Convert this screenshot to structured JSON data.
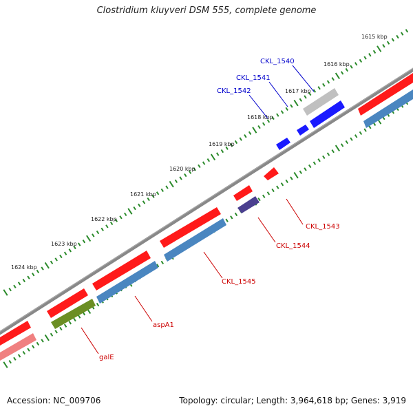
{
  "title": "Clostridium kluyveri DSM 555, complete genome",
  "accession_text": "Accession: NC_009706",
  "topology_text": "Topology: circular; Length: 3,964,618 bp; Genes: 3,919",
  "colors": {
    "backbone": "#777777",
    "tick": "#2a8a2a",
    "forward_cds": "#ff1a1a",
    "reverse_cds": "#4a86c0",
    "forward_hit": "#1a1aff",
    "reverse_hit": "#4a3f8f",
    "olive": "#6b8e23",
    "pink": "#f08080",
    "gray": "#c0c0c0",
    "label_forward": "#0000cc",
    "label_reverse": "#cc0000"
  },
  "scale": {
    "unit": "kbp",
    "ticks": [
      {
        "label": "1615 kbp"
      },
      {
        "label": "1616 kbp"
      },
      {
        "label": "1617 kbp"
      },
      {
        "label": "1618 kbp"
      },
      {
        "label": "1619 kbp"
      },
      {
        "label": "1620 kbp"
      },
      {
        "label": "1621 kbp"
      },
      {
        "label": "1622 kbp"
      },
      {
        "label": "1623 kbp"
      },
      {
        "label": "1624 kbp"
      }
    ]
  },
  "gene_labels": [
    {
      "text": "CKL_1540",
      "strand": "forward"
    },
    {
      "text": "CKL_1541",
      "strand": "forward"
    },
    {
      "text": "CKL_1542",
      "strand": "forward"
    },
    {
      "text": "CKL_1543",
      "strand": "reverse"
    },
    {
      "text": "CKL_1544",
      "strand": "reverse"
    },
    {
      "text": "CKL_1545",
      "strand": "reverse"
    },
    {
      "text": "aspA1",
      "strand": "reverse"
    },
    {
      "text": "galE",
      "strand": "reverse"
    }
  ]
}
